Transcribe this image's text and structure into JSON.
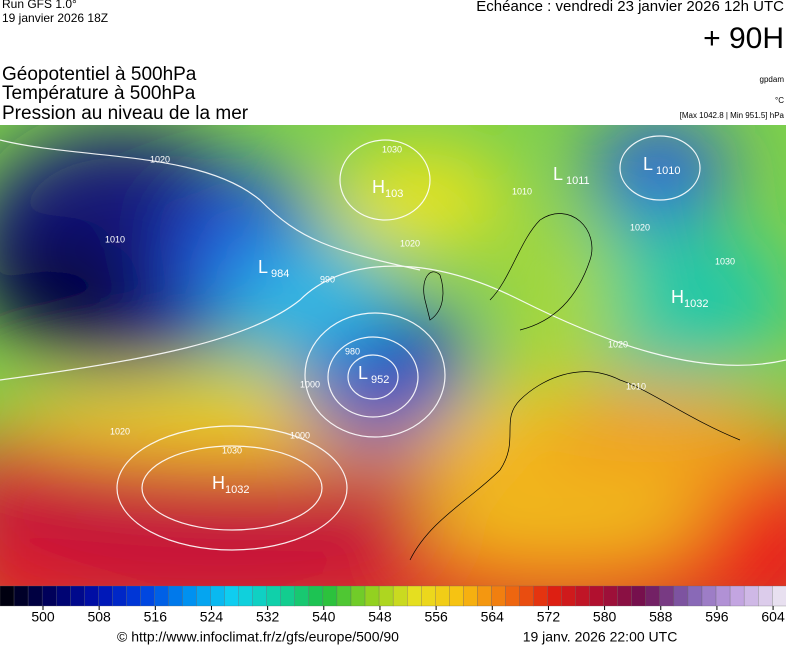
{
  "header": {
    "run": "Run GFS 1.0°",
    "date": "19 janvier 2026 18Z",
    "echeance": "Echéance : vendredi 23 janvier 2026 12h UTC",
    "lead": "+ 90H"
  },
  "titles": [
    "Géopotentiel à 500hPa",
    "Température à 500hPa",
    "Pression au niveau de la mer"
  ],
  "units": [
    "gpdam",
    "°C",
    "[Max 1042.8 | Min 951.5] hPa"
  ],
  "centers": [
    {
      "type": "H",
      "value": 1032
    },
    {
      "type": "L",
      "value": 952
    },
    {
      "type": "L",
      "value": 984
    },
    {
      "type": "H",
      "value": 103
    },
    {
      "type": "L",
      "value": 1011
    },
    {
      "type": "L",
      "value": 1010
    },
    {
      "type": "H",
      "value": 1032
    }
  ],
  "isobar_labels": [
    1020,
    1010,
    1000,
    990,
    980,
    1030,
    1020,
    1010,
    1000,
    1020,
    1030,
    1020,
    1010,
    1030,
    1020
  ],
  "colorbar": {
    "ticks": [
      500,
      508,
      516,
      524,
      532,
      540,
      548,
      556,
      564,
      572,
      580,
      588,
      596,
      604
    ]
  },
  "footer": {
    "url": "© http://www.infoclimat.fr/z/gfs/europe/500/90",
    "time": "19 janv. 2026 22:00 UTC"
  }
}
